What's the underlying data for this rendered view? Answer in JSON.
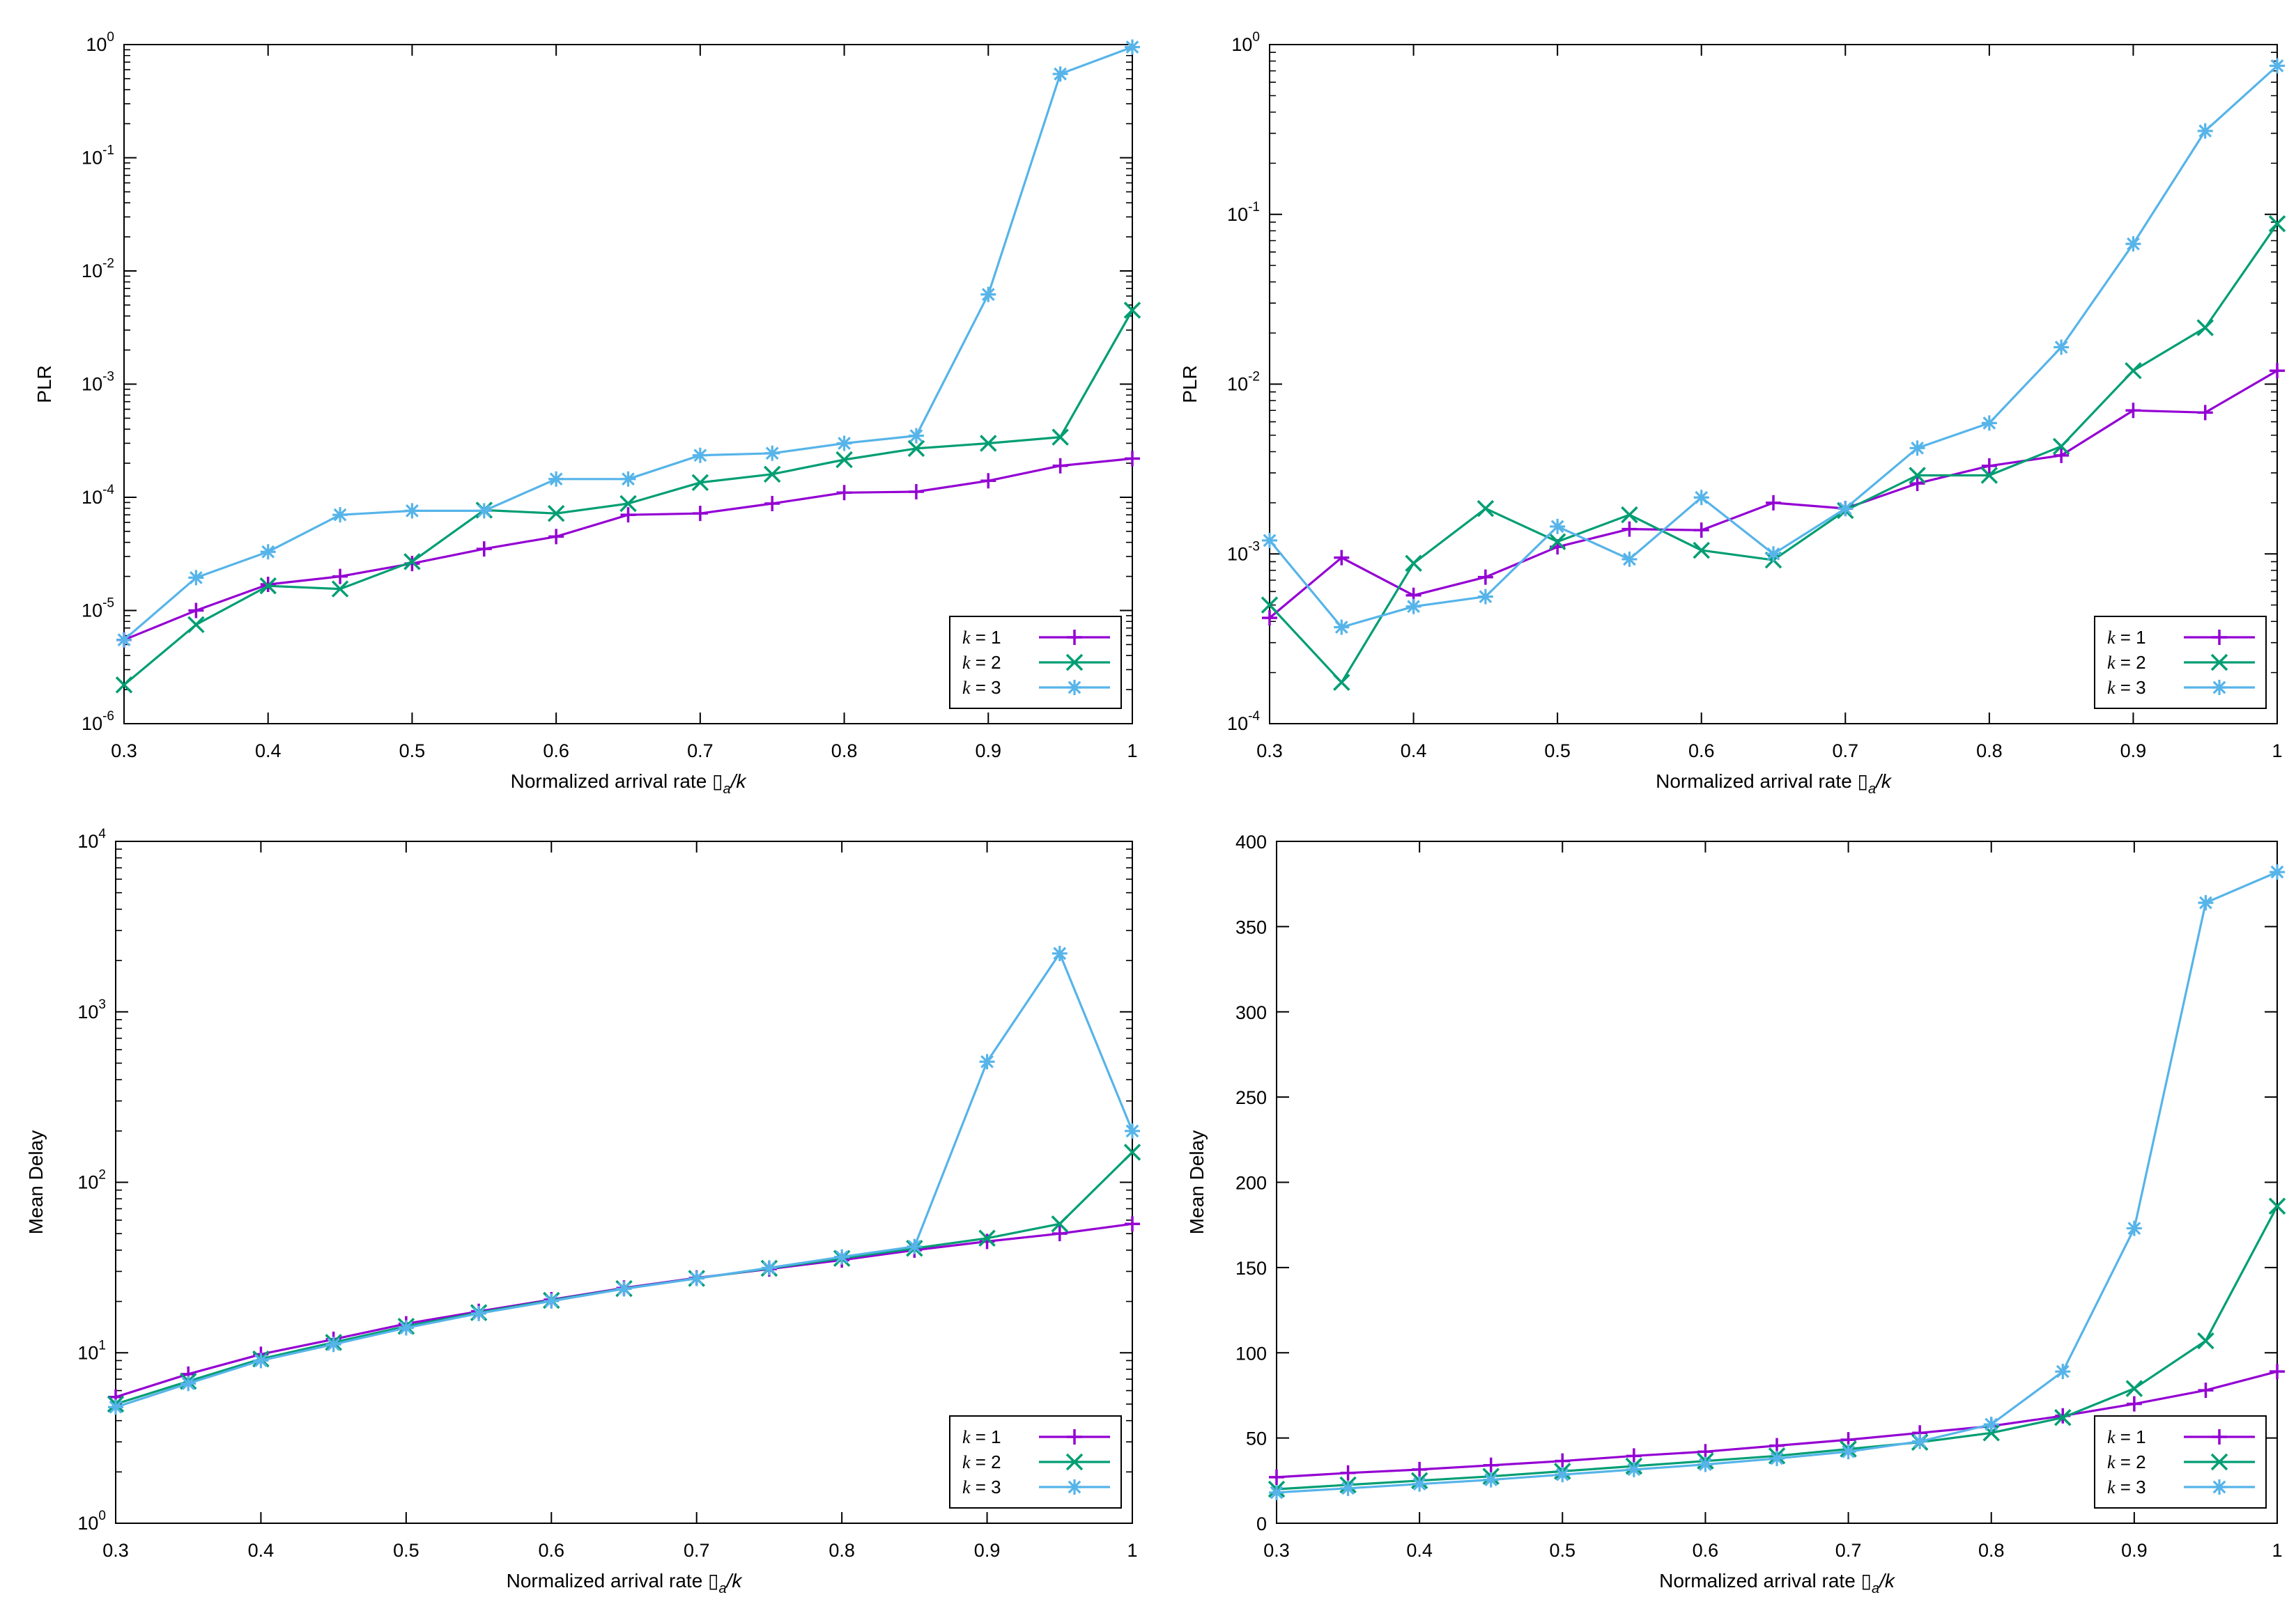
{
  "chart_data": [
    {
      "type": "line",
      "scale": "log",
      "title": "",
      "xlabel": "Normalized arrival rate ▯",
      "xlabel_sub": "a",
      "xlabel_tail": "/k",
      "ylabel": "PLR",
      "xlim": [
        0.3,
        1
      ],
      "ylim": [
        1e-06,
        1
      ],
      "x_ticks": [
        "0.3",
        "0.4",
        "0.5",
        "0.6",
        "0.7",
        "0.8",
        "0.9",
        "1"
      ],
      "y_ticks": [
        {
          "value": 1e-06,
          "base": "10",
          "exp": "-6"
        },
        {
          "value": 1e-05,
          "base": "10",
          "exp": "-5"
        },
        {
          "value": 0.0001,
          "base": "10",
          "exp": "-4"
        },
        {
          "value": 0.001,
          "base": "10",
          "exp": "-3"
        },
        {
          "value": 0.01,
          "base": "10",
          "exp": "-2"
        },
        {
          "value": 0.1,
          "base": "10",
          "exp": "-1"
        },
        {
          "value": 1,
          "base": "10",
          "exp": "0"
        }
      ],
      "legend_position": "bottom-right",
      "x": [
        0.3,
        0.35,
        0.4,
        0.45,
        0.5,
        0.55,
        0.6,
        0.65,
        0.7,
        0.75,
        0.8,
        0.85,
        0.9,
        0.95,
        1.0
      ],
      "series": [
        {
          "name": "k",
          "suffix": " = 1",
          "color": "#9400d3",
          "marker": "plus",
          "values": [
            5.5e-06,
            1e-05,
            1.7e-05,
            2e-05,
            2.6e-05,
            3.5e-05,
            4.5e-05,
            7e-05,
            7.2e-05,
            8.8e-05,
            0.00011,
            0.000112,
            0.00014,
            0.00019,
            0.00022
          ]
        },
        {
          "name": "k",
          "suffix": " = 2",
          "color": "#009e73",
          "marker": "cross",
          "values": [
            2.2e-06,
            7.5e-06,
            1.65e-05,
            1.55e-05,
            2.7e-05,
            7.7e-05,
            7.2e-05,
            8.8e-05,
            0.000135,
            0.00016,
            0.000215,
            0.00027,
            0.0003,
            0.00034,
            0.0045
          ]
        },
        {
          "name": "k",
          "suffix": " = 3",
          "color": "#56b4e9",
          "marker": "star",
          "values": [
            5.5e-06,
            1.95e-05,
            3.3e-05,
            7e-05,
            7.6e-05,
            7.6e-05,
            0.000145,
            0.000145,
            0.000235,
            0.000245,
            0.0003,
            0.00035,
            0.0062,
            0.55,
            0.95
          ]
        }
      ]
    },
    {
      "type": "line",
      "scale": "log",
      "title": "",
      "xlabel": "Normalized arrival rate ▯",
      "xlabel_sub": "a",
      "xlabel_tail": "/k",
      "ylabel": "PLR",
      "xlim": [
        0.3,
        1
      ],
      "ylim": [
        0.0001,
        1
      ],
      "x_ticks": [
        "0.3",
        "0.4",
        "0.5",
        "0.6",
        "0.7",
        "0.8",
        "0.9",
        "1"
      ],
      "y_ticks": [
        {
          "value": 0.0001,
          "base": "10",
          "exp": "-4"
        },
        {
          "value": 0.001,
          "base": "10",
          "exp": "-3"
        },
        {
          "value": 0.01,
          "base": "10",
          "exp": "-2"
        },
        {
          "value": 0.1,
          "base": "10",
          "exp": "-1"
        },
        {
          "value": 1,
          "base": "10",
          "exp": "0"
        }
      ],
      "legend_position": "bottom-right",
      "x": [
        0.3,
        0.35,
        0.4,
        0.45,
        0.5,
        0.55,
        0.6,
        0.65,
        0.7,
        0.75,
        0.8,
        0.85,
        0.9,
        0.95,
        1.0
      ],
      "series": [
        {
          "name": "k",
          "suffix": " = 1",
          "color": "#9400d3",
          "marker": "plus",
          "values": [
            0.00042,
            0.00095,
            0.00057,
            0.00073,
            0.0011,
            0.0014,
            0.00138,
            0.002,
            0.00185,
            0.0026,
            0.0033,
            0.0038,
            0.007,
            0.0068,
            0.012
          ]
        },
        {
          "name": "k",
          "suffix": " = 2",
          "color": "#009e73",
          "marker": "cross",
          "values": [
            0.0005,
            0.000175,
            0.00088,
            0.00185,
            0.00118,
            0.0017,
            0.00105,
            0.00092,
            0.0018,
            0.0029,
            0.0029,
            0.0043,
            0.012,
            0.0215,
            0.088
          ]
        },
        {
          "name": "k",
          "suffix": " = 3",
          "color": "#56b4e9",
          "marker": "star",
          "values": [
            0.0012,
            0.00037,
            0.00049,
            0.00056,
            0.00145,
            0.00093,
            0.00215,
            0.001,
            0.00185,
            0.0042,
            0.0059,
            0.0165,
            0.067,
            0.31,
            0.75
          ]
        }
      ]
    },
    {
      "type": "line",
      "scale": "log",
      "title": "",
      "xlabel": "Normalized arrival rate ▯",
      "xlabel_sub": "a",
      "xlabel_tail": "/k",
      "ylabel": "Mean Delay",
      "xlim": [
        0.3,
        1
      ],
      "ylim": [
        1,
        10000
      ],
      "x_ticks": [
        "0.3",
        "0.4",
        "0.5",
        "0.6",
        "0.7",
        "0.8",
        "0.9",
        "1"
      ],
      "y_ticks": [
        {
          "value": 1,
          "base": "10",
          "exp": "0"
        },
        {
          "value": 10,
          "base": "10",
          "exp": "1"
        },
        {
          "value": 100,
          "base": "10",
          "exp": "2"
        },
        {
          "value": 1000,
          "base": "10",
          "exp": "3"
        },
        {
          "value": 10000,
          "base": "10",
          "exp": "4"
        }
      ],
      "legend_position": "bottom-right",
      "x": [
        0.3,
        0.35,
        0.4,
        0.45,
        0.5,
        0.55,
        0.6,
        0.65,
        0.7,
        0.75,
        0.8,
        0.85,
        0.9,
        0.95,
        1.0
      ],
      "series": [
        {
          "name": "k",
          "suffix": " = 1",
          "color": "#9400d3",
          "marker": "plus",
          "values": [
            5.5,
            7.5,
            9.8,
            12,
            14.8,
            17.5,
            20.5,
            24,
            27.5,
            31,
            35,
            40,
            45,
            50,
            57
          ]
        },
        {
          "name": "k",
          "suffix": " = 2",
          "color": "#009e73",
          "marker": "cross",
          "values": [
            5,
            6.8,
            9.2,
            11.5,
            14.3,
            17.2,
            20.3,
            23.8,
            27.3,
            31.3,
            35.8,
            41,
            47,
            57,
            150
          ]
        },
        {
          "name": "k",
          "suffix": " = 3",
          "color": "#56b4e9",
          "marker": "star",
          "values": [
            4.8,
            6.6,
            9,
            11.2,
            14,
            17,
            20.1,
            23.7,
            27.3,
            31.5,
            36.5,
            42,
            510,
            2200,
            200
          ]
        }
      ]
    },
    {
      "type": "line",
      "scale": "linear",
      "title": "",
      "xlabel": "Normalized arrival rate ▯",
      "xlabel_sub": "a",
      "xlabel_tail": "/k",
      "ylabel": "Mean Delay",
      "xlim": [
        0.3,
        1
      ],
      "ylim": [
        0,
        400
      ],
      "x_ticks": [
        "0.3",
        "0.4",
        "0.5",
        "0.6",
        "0.7",
        "0.8",
        "0.9",
        "1"
      ],
      "y_ticks": [
        {
          "value": 0,
          "label": "0"
        },
        {
          "value": 50,
          "label": "50"
        },
        {
          "value": 100,
          "label": "100"
        },
        {
          "value": 150,
          "label": "150"
        },
        {
          "value": 200,
          "label": "200"
        },
        {
          "value": 250,
          "label": "250"
        },
        {
          "value": 300,
          "label": "300"
        },
        {
          "value": 350,
          "label": "350"
        },
        {
          "value": 400,
          "label": "400"
        }
      ],
      "legend_position": "bottom-right",
      "x": [
        0.3,
        0.35,
        0.4,
        0.45,
        0.5,
        0.55,
        0.6,
        0.65,
        0.7,
        0.75,
        0.8,
        0.85,
        0.9,
        0.95,
        1.0
      ],
      "series": [
        {
          "name": "k",
          "suffix": " = 1",
          "color": "#9400d3",
          "marker": "plus",
          "values": [
            27,
            29.5,
            31.5,
            34,
            36.5,
            39.5,
            42,
            45.5,
            49,
            53,
            57,
            63,
            70,
            78,
            89
          ]
        },
        {
          "name": "k",
          "suffix": " = 2",
          "color": "#009e73",
          "marker": "cross",
          "values": [
            20,
            22.5,
            25,
            27.5,
            30.5,
            33.5,
            36.5,
            39.5,
            43.5,
            47.5,
            53,
            62,
            79,
            107,
            186
          ]
        },
        {
          "name": "k",
          "suffix": " = 3",
          "color": "#56b4e9",
          "marker": "star",
          "values": [
            18,
            20.5,
            23,
            25.5,
            28.5,
            31.5,
            34.5,
            38,
            42,
            48,
            58,
            89,
            173,
            364,
            382
          ]
        }
      ]
    }
  ]
}
